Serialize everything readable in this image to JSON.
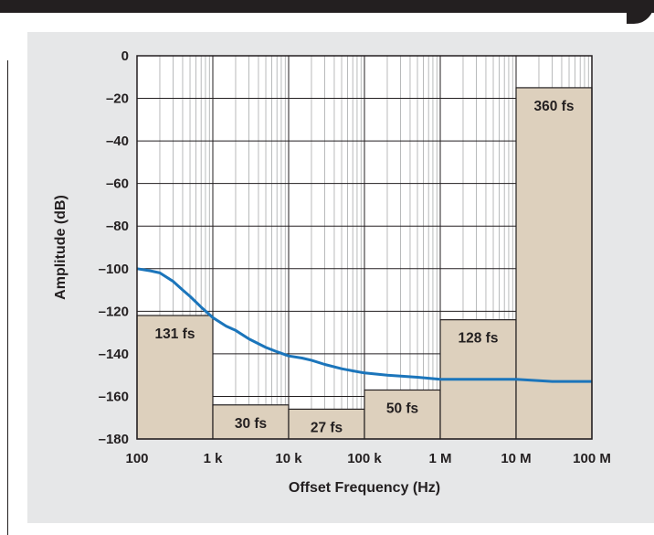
{
  "chart_data": {
    "type": "line",
    "title": "",
    "xlabel": "Offset Frequency (Hz)",
    "ylabel": "Amplitude (dB)",
    "x_scale": "log",
    "xlim": [
      100,
      100000000
    ],
    "ylim": [
      -180,
      0
    ],
    "grid": true,
    "x_tick_values": [
      100,
      1000,
      10000,
      100000,
      1000000,
      10000000,
      100000000
    ],
    "x_tick_labels": [
      "100",
      "1 k",
      "10 k",
      "100 k",
      "1 M",
      "10 M",
      "100 M"
    ],
    "y_tick_values": [
      0,
      -20,
      -40,
      -60,
      -80,
      -100,
      -120,
      -140,
      -160,
      -180
    ],
    "y_tick_labels": [
      "0",
      "–20",
      "–40",
      "–60",
      "–80",
      "–100",
      "–120",
      "–140",
      "–160",
      "–180"
    ],
    "bars": [
      {
        "x_start": 100,
        "x_end": 1000,
        "level_db": -122,
        "label": "131 fs"
      },
      {
        "x_start": 1000,
        "x_end": 10000,
        "level_db": -164,
        "label": "30 fs"
      },
      {
        "x_start": 10000,
        "x_end": 100000,
        "level_db": -166,
        "label": "27 fs"
      },
      {
        "x_start": 100000,
        "x_end": 1000000,
        "level_db": -157,
        "label": "50 fs"
      },
      {
        "x_start": 1000000,
        "x_end": 10000000,
        "level_db": -124,
        "label": "128 fs"
      },
      {
        "x_start": 10000000,
        "x_end": 100000000,
        "level_db": -15,
        "label": "360 fs"
      }
    ],
    "series": [
      {
        "color": "#1b75bb",
        "points": [
          [
            100,
            -100
          ],
          [
            150,
            -101
          ],
          [
            200,
            -102
          ],
          [
            300,
            -106
          ],
          [
            400,
            -110
          ],
          [
            500,
            -113
          ],
          [
            700,
            -118
          ],
          [
            1000,
            -123
          ],
          [
            1500,
            -127
          ],
          [
            2000,
            -129
          ],
          [
            3000,
            -133
          ],
          [
            5000,
            -137
          ],
          [
            7000,
            -139
          ],
          [
            10000,
            -141
          ],
          [
            15000,
            -142
          ],
          [
            20000,
            -143
          ],
          [
            30000,
            -145
          ],
          [
            50000,
            -147
          ],
          [
            70000,
            -148
          ],
          [
            100000,
            -149
          ],
          [
            200000,
            -150
          ],
          [
            500000,
            -151
          ],
          [
            1000000,
            -152
          ],
          [
            3000000,
            -152
          ],
          [
            10000000,
            -152
          ],
          [
            30000000,
            -153
          ],
          [
            100000000,
            -153
          ]
        ]
      }
    ],
    "colors": {
      "bar_fill": "#ddd0bd",
      "bar_stroke": "#231f20",
      "background": "#e6e7e8",
      "plot_bg": "#ffffff",
      "grid": "#8a8c8e",
      "line": "#1b75bb"
    }
  }
}
